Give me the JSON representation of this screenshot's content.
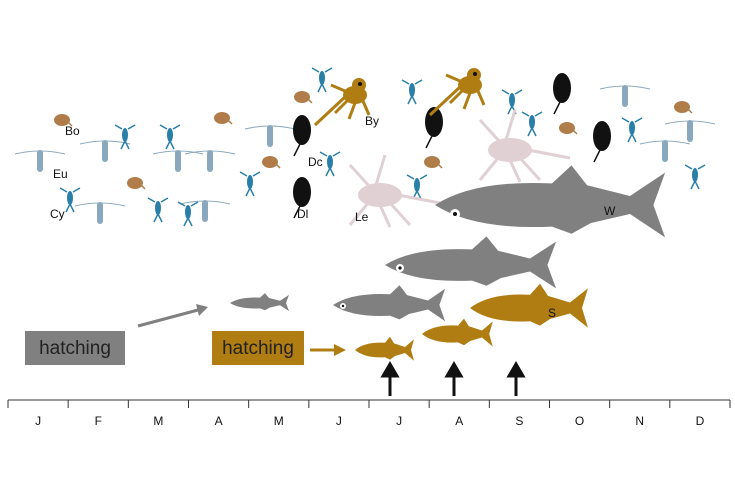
{
  "organisms": [
    {
      "label": "Bo"
    },
    {
      "label": "Eu"
    },
    {
      "label": "Cy"
    },
    {
      "label": "By"
    },
    {
      "label": "Dc"
    },
    {
      "label": "Dl"
    },
    {
      "label": "Le"
    },
    {
      "label": "W"
    },
    {
      "label": "S"
    }
  ],
  "hatching": [
    "hatching",
    "hatching"
  ],
  "months": [
    "J",
    "F",
    "M",
    "A",
    "M",
    "J",
    "J",
    "A",
    "S",
    "O",
    "N",
    "D"
  ]
}
